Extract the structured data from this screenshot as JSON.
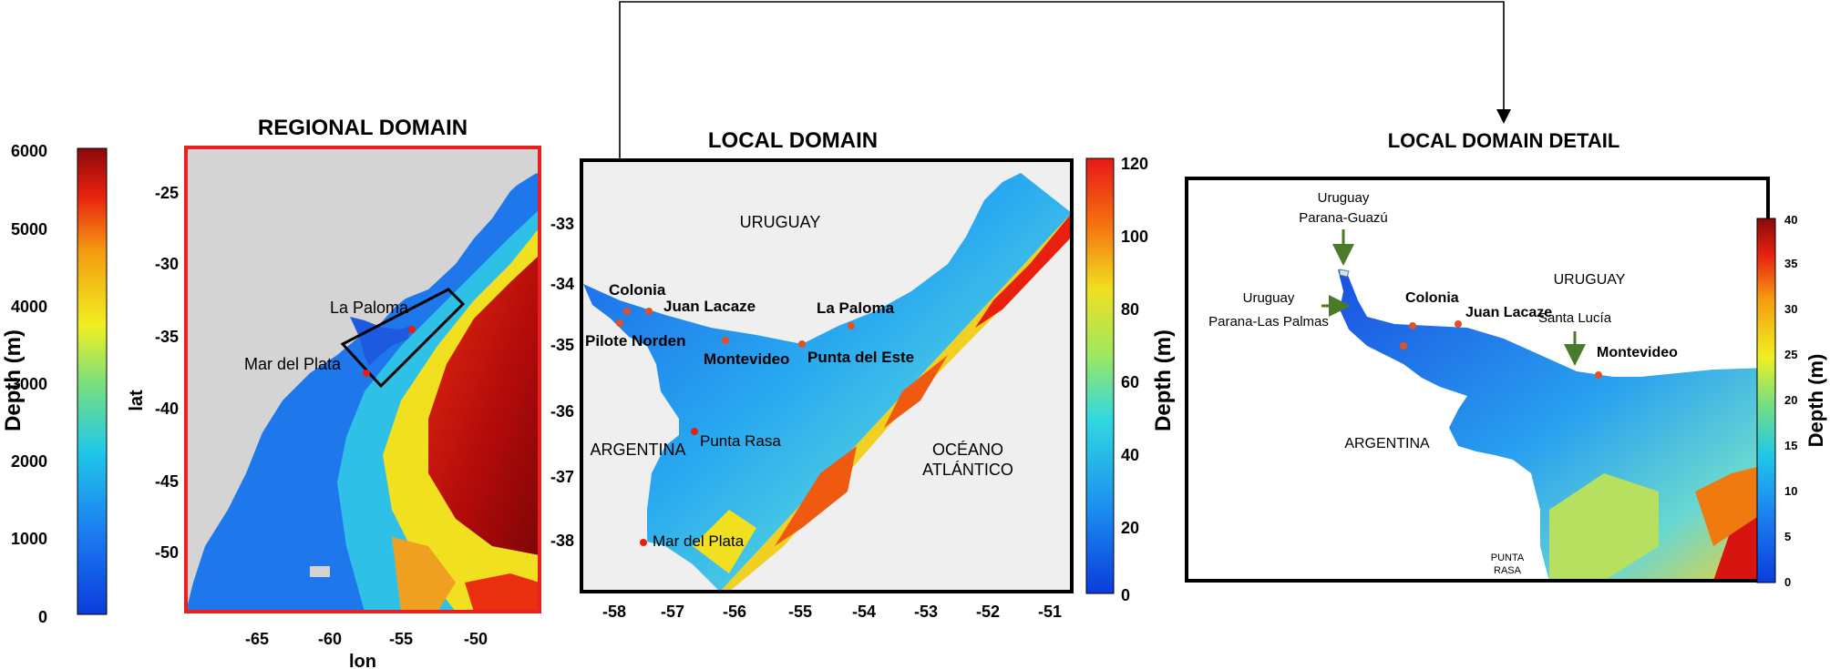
{
  "regional": {
    "title": "REGIONAL DOMAIN",
    "colorbar": {
      "label": "Depth (m)",
      "ticks": [
        "0",
        "1000",
        "2000",
        "3000",
        "4000",
        "5000",
        "6000"
      ]
    },
    "x_label": "lon",
    "y_label": "lat",
    "x_ticks": [
      "-65",
      "-60",
      "-55",
      "-50"
    ],
    "y_ticks": [
      "-25",
      "-30",
      "-35",
      "-40",
      "-45",
      "-50"
    ],
    "places": [
      "La Paloma",
      "Mar del Plata"
    ]
  },
  "local": {
    "title": "LOCAL DOMAIN",
    "colorbar": {
      "label": "Depth (m)",
      "ticks": [
        "0",
        "20",
        "40",
        "60",
        "80",
        "100",
        "120"
      ]
    },
    "x_ticks": [
      "-58",
      "-57",
      "-56",
      "-55",
      "-54",
      "-53",
      "-52",
      "-51"
    ],
    "y_ticks": [
      "-33",
      "-34",
      "-35",
      "-36",
      "-37",
      "-38"
    ],
    "regions": [
      "URUGUAY",
      "ARGENTINA",
      "OCÉANO",
      "ATLÁNTICO"
    ],
    "places": [
      "Colonia",
      "Juan Lacaze",
      "La Paloma",
      "Pilote Norden",
      "Montevideo",
      "Punta del Este",
      "Punta Rasa",
      "Mar del Plata"
    ]
  },
  "detail": {
    "title": "LOCAL DOMAIN DETAIL",
    "colorbar": {
      "label": "Depth (m)",
      "ticks": [
        "0",
        "5",
        "10",
        "15",
        "20",
        "25",
        "30",
        "35",
        "40"
      ]
    },
    "regions": [
      "URUGUAY",
      "ARGENTINA",
      "PUNTA",
      "RASA"
    ],
    "annotations": [
      "Uruguay",
      "Parana-Guazú",
      "Uruguay",
      "Parana-Las Palmas",
      "Santa Lucía"
    ],
    "places": [
      "Colonia",
      "Juan Lacaze",
      "Montevideo"
    ]
  },
  "colors": {
    "regional_frame": "#e8201e",
    "arrow_green": "#4a7a2a",
    "site_marker": "#e0502a"
  }
}
